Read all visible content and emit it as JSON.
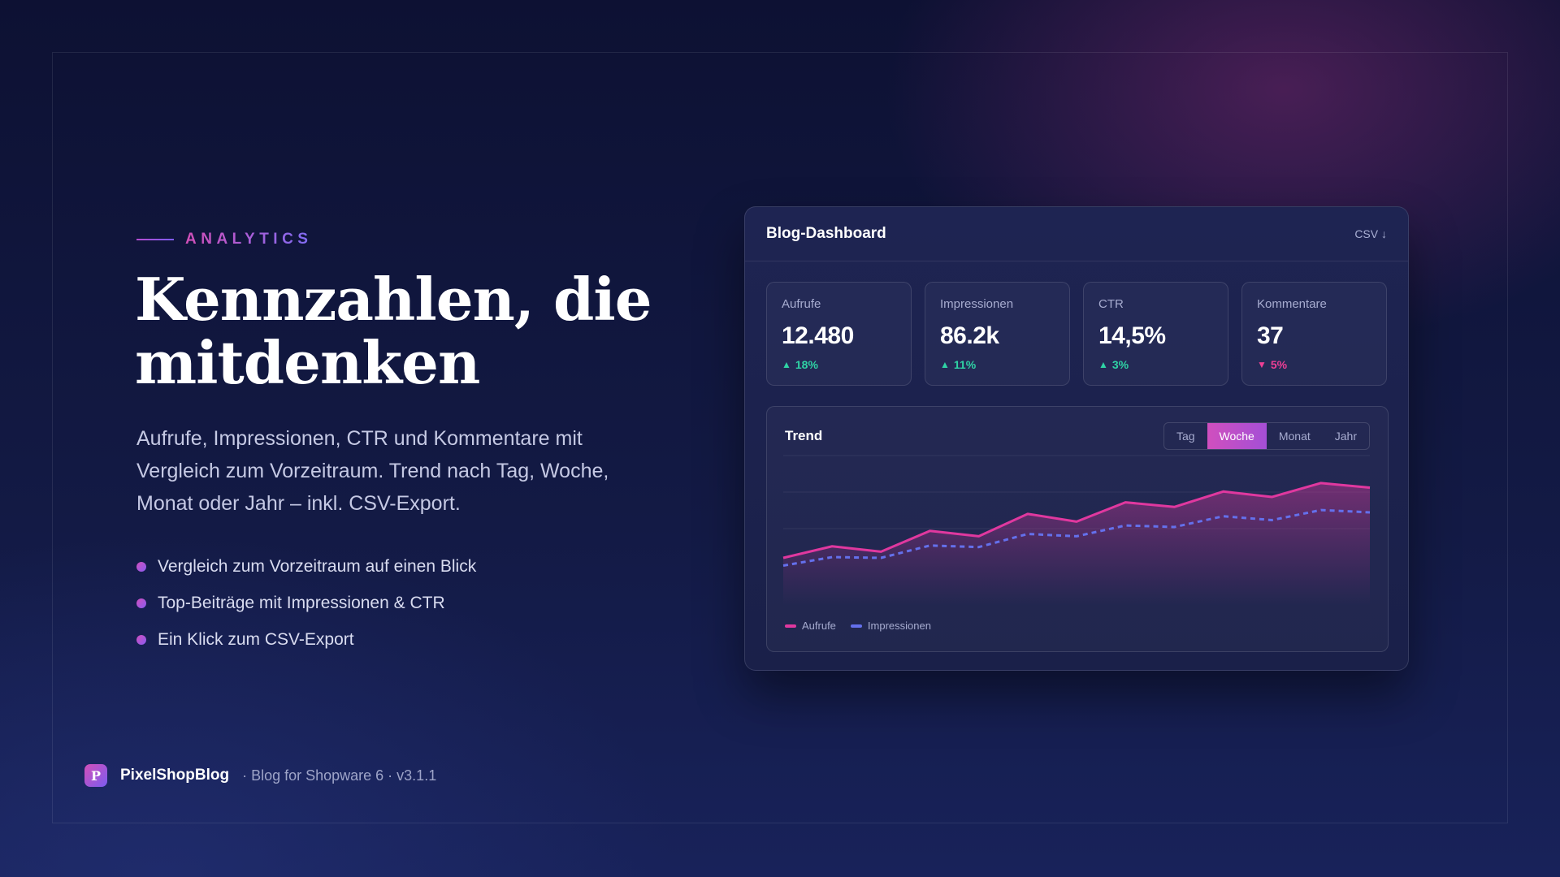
{
  "hero": {
    "eyebrow": "ANALYTICS",
    "headline": "Kennzahlen, die mitdenken",
    "intro": "Aufrufe, Impressionen, CTR und Kommentare mit Vergleich zum Vorzeitraum. Trend nach Tag, Woche, Monat oder Jahr – inkl. CSV-Export.",
    "bullets": [
      "Vergleich zum Vorzeitraum auf einen Blick",
      "Top-Beiträge mit Impressionen & CTR",
      "Ein Klick zum CSV-Export"
    ]
  },
  "brand": {
    "logo_letter": "P",
    "name": "PixelShopBlog",
    "meta": "· Blog for Shopware 6 · v3.1.1"
  },
  "dashboard": {
    "title": "Blog-Dashboard",
    "csv_label": "CSV ↓",
    "kpis": [
      {
        "label": "Aufrufe",
        "value": "12.480",
        "arrow": "▲",
        "delta": "18%",
        "trend": "up"
      },
      {
        "label": "Impressionen",
        "value": "86.2k",
        "arrow": "▲",
        "delta": "11%",
        "trend": "up"
      },
      {
        "label": "CTR",
        "value": "14,5%",
        "arrow": "▲",
        "delta": "3%",
        "trend": "up"
      },
      {
        "label": "Kommentare",
        "value": "37",
        "arrow": "▼",
        "delta": "5%",
        "trend": "down"
      }
    ],
    "trend": {
      "title": "Trend",
      "periods": [
        "Tag",
        "Woche",
        "Monat",
        "Jahr"
      ],
      "active_period": "Woche"
    }
  },
  "colors": {
    "accent_pink": "#e0389f",
    "accent_blue": "#6470ec",
    "positive": "#2fd3a5",
    "negative": "#ee3f95"
  },
  "chart_data": {
    "type": "line",
    "x": [
      1,
      2,
      3,
      4,
      5,
      6,
      7,
      8,
      9,
      10,
      11,
      12,
      13
    ],
    "series": [
      {
        "name": "Aufrufe",
        "values": [
          0,
          15,
          8,
          35,
          28,
          57,
          47,
          72,
          66,
          86,
          79,
          97,
          91
        ],
        "style": "solid-area"
      },
      {
        "name": "Impressionen",
        "values": [
          -10,
          1,
          0,
          16,
          14,
          31,
          28,
          42,
          40,
          54,
          49,
          62,
          59
        ],
        "style": "dashed"
      }
    ],
    "ylim": [
      -20,
      120
    ],
    "grid": true,
    "legend": "bottom-left"
  }
}
